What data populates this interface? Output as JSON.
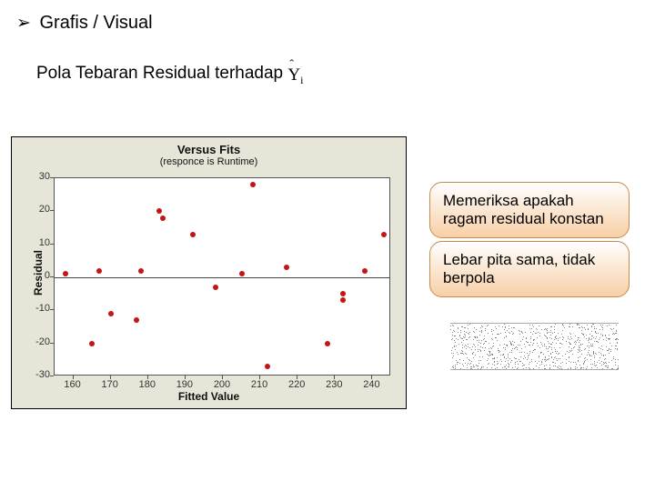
{
  "header": {
    "bullet": "➢",
    "text": "Grafis / Visual"
  },
  "subtitle": {
    "text": "Pola Tebaran Residual  terhadap",
    "symbol_base": "Y",
    "symbol_hat": "ˆ",
    "symbol_sub": "i"
  },
  "chart": {
    "type": "scatter",
    "title": "Versus Fits",
    "subtitle": "(responce is Runtime)",
    "xlabel": "Fitted Value",
    "ylabel": "Residual",
    "background_color": "#e6e5d8",
    "plot_background": "#ffffff",
    "border_color": "#555555",
    "title_fontsize": 13,
    "label_fontsize": 12,
    "tick_fontsize": 11,
    "xlim": [
      155,
      245
    ],
    "ylim": [
      -30,
      30
    ],
    "xtick_step": 10,
    "ytick_step": 10,
    "xticks": [
      160,
      170,
      180,
      190,
      200,
      210,
      220,
      230,
      240
    ],
    "yticks": [
      -30,
      -20,
      -10,
      0,
      10,
      20,
      30
    ],
    "zero_line": true,
    "marker_color": "#c41414",
    "marker_size": 6,
    "points": [
      {
        "x": 158,
        "y": 1
      },
      {
        "x": 165,
        "y": -20
      },
      {
        "x": 167,
        "y": 2
      },
      {
        "x": 170,
        "y": -11
      },
      {
        "x": 177,
        "y": -13
      },
      {
        "x": 178,
        "y": 2
      },
      {
        "x": 183,
        "y": 20
      },
      {
        "x": 184,
        "y": 18
      },
      {
        "x": 192,
        "y": 13
      },
      {
        "x": 198,
        "y": -3
      },
      {
        "x": 205,
        "y": 1
      },
      {
        "x": 208,
        "y": 28
      },
      {
        "x": 212,
        "y": -27
      },
      {
        "x": 217,
        "y": 3
      },
      {
        "x": 228,
        "y": -20
      },
      {
        "x": 232,
        "y": -7
      },
      {
        "x": 232,
        "y": -5
      },
      {
        "x": 238,
        "y": 2
      },
      {
        "x": 243,
        "y": 13
      }
    ]
  },
  "callouts": {
    "c1": "Memeriksa apakah ragam residual konstan",
    "c2": "Lebar pita sama, tidak berpola"
  },
  "noise_band": {
    "width": 185,
    "height": 52,
    "dots": 900,
    "dot_color": "#888888"
  }
}
